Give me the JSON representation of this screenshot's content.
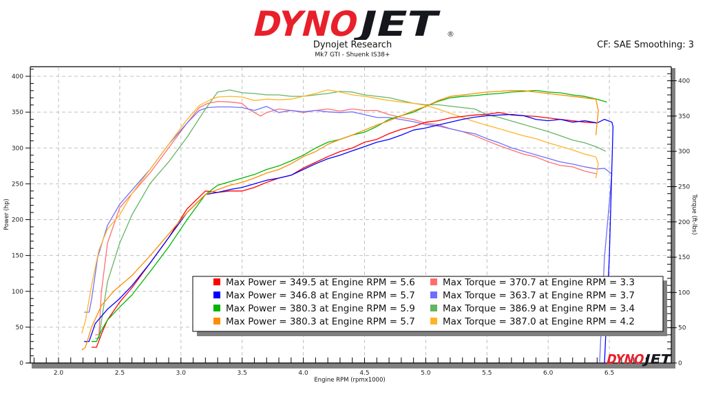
{
  "header": {
    "logo_text_red": "DYNO",
    "logo_text_black": "JET",
    "logo_registered": "®",
    "organization": "Dynojet Research",
    "subtitle": "Mk7 GTI - Shuenk IS38+",
    "correction": "CF: SAE Smoothing: 3"
  },
  "watermark": {
    "red": "DYNO",
    "black": "JET"
  },
  "colors": {
    "run1_power": "#ff0000",
    "run2_power": "#0000ff",
    "run3_power": "#00b400",
    "run4_power": "#ff8c00",
    "run1_torque": "#ff6e6e",
    "run2_torque": "#6e6eff",
    "run3_torque": "#64b464",
    "run4_torque": "#ffb428",
    "grid": "#c0c0c0",
    "brand_red": "#e8202a"
  },
  "chart_data": {
    "type": "line",
    "title": "Dynojet Research",
    "subtitle": "Mk7 GTI - Shuenk IS38+",
    "xlabel": "Engine RPM (rpmx1000)",
    "ylabel": "Power (hp)",
    "y2label": "Torque (ft-lbs)",
    "xlim": [
      1.78,
      6.97
    ],
    "ylim": [
      0,
      400
    ],
    "y2lim": [
      0,
      400
    ],
    "x_ticks": [
      "2.0",
      "2.5",
      "3.0",
      "3.5",
      "4.0",
      "4.5",
      "5.0",
      "5.5",
      "6.0",
      "6.5"
    ],
    "y_ticks": [
      "0",
      "50",
      "100",
      "150",
      "200",
      "250",
      "300",
      "350",
      "400"
    ],
    "y2_ticks": [
      "0",
      "50",
      "100",
      "150",
      "200",
      "250",
      "300",
      "350",
      "400"
    ],
    "grid": true,
    "legend_position": "lower center-right",
    "series": [
      {
        "name": "Max Power = 349.5 at Engine RPM = 5.6",
        "axis": "left",
        "color": "#ff0000",
        "x": [
          2.27,
          2.31,
          2.35,
          2.4,
          2.5,
          2.6,
          2.75,
          2.9,
          3.05,
          3.2,
          3.3,
          3.4,
          3.5,
          3.6,
          3.7,
          3.8,
          3.9,
          4.0,
          4.1,
          4.2,
          4.3,
          4.4,
          4.5,
          4.6,
          4.7,
          4.8,
          4.9,
          5.0,
          5.1,
          5.2,
          5.3,
          5.4,
          5.5,
          5.6,
          5.7,
          5.8,
          5.9,
          6.0,
          6.1,
          6.2,
          6.3,
          6.4
        ],
        "y": [
          22,
          22,
          40,
          60,
          85,
          105,
          140,
          175,
          215,
          240,
          238,
          240,
          240,
          245,
          252,
          258,
          262,
          272,
          280,
          288,
          295,
          300,
          308,
          312,
          320,
          326,
          330,
          336,
          338,
          342,
          344,
          346,
          347,
          349.5,
          346,
          345,
          344,
          342,
          340,
          338,
          336,
          335
        ]
      },
      {
        "name": "Max Power = 346.8 at Engine RPM = 5.7",
        "axis": "left",
        "color": "#0000ff",
        "x": [
          2.21,
          2.25,
          2.3,
          2.4,
          2.5,
          2.6,
          2.75,
          2.9,
          3.05,
          3.2,
          3.3,
          3.4,
          3.5,
          3.6,
          3.7,
          3.8,
          3.9,
          4.0,
          4.1,
          4.2,
          4.3,
          4.4,
          4.5,
          4.6,
          4.7,
          4.8,
          4.9,
          5.0,
          5.1,
          5.2,
          5.3,
          5.4,
          5.5,
          5.6,
          5.7,
          5.8,
          5.9,
          6.0,
          6.1,
          6.2,
          6.3,
          6.4,
          6.46,
          6.52,
          6.53,
          6.5,
          6.46
        ],
        "y": [
          30,
          30,
          55,
          75,
          90,
          108,
          140,
          175,
          210,
          235,
          238,
          242,
          245,
          250,
          255,
          258,
          262,
          270,
          278,
          285,
          290,
          296,
          302,
          308,
          312,
          318,
          325,
          328,
          332,
          336,
          340,
          343,
          345,
          346,
          346.8,
          345,
          340,
          338,
          340,
          336,
          338,
          335,
          340,
          336,
          330,
          150,
          0
        ]
      },
      {
        "name": "Max Power = 380.3 at Engine RPM = 5.9",
        "axis": "left",
        "color": "#00b400",
        "x": [
          2.27,
          2.31,
          2.35,
          2.4,
          2.5,
          2.6,
          2.75,
          2.9,
          3.05,
          3.2,
          3.3,
          3.4,
          3.5,
          3.6,
          3.7,
          3.8,
          3.9,
          4.0,
          4.1,
          4.2,
          4.3,
          4.4,
          4.5,
          4.6,
          4.7,
          4.8,
          4.9,
          5.0,
          5.1,
          5.2,
          5.3,
          5.4,
          5.5,
          5.6,
          5.7,
          5.8,
          5.9,
          6.0,
          6.1,
          6.2,
          6.3,
          6.4,
          6.48
        ],
        "y": [
          30,
          30,
          45,
          60,
          78,
          95,
          128,
          162,
          200,
          235,
          248,
          253,
          258,
          263,
          270,
          275,
          282,
          290,
          300,
          308,
          312,
          318,
          322,
          330,
          340,
          345,
          350,
          358,
          365,
          370,
          372,
          373,
          375,
          376,
          378,
          379,
          380.3,
          378,
          377,
          374,
          372,
          368,
          364
        ]
      },
      {
        "name": "Max Power = 380.3 at Engine RPM = 5.7",
        "axis": "left",
        "color": "#ff8c00",
        "x": [
          2.19,
          2.22,
          2.27,
          2.35,
          2.45,
          2.6,
          2.75,
          2.9,
          3.05,
          3.2,
          3.3,
          3.4,
          3.5,
          3.6,
          3.7,
          3.8,
          3.9,
          4.0,
          4.1,
          4.2,
          4.3,
          4.4,
          4.5,
          4.6,
          4.7,
          4.8,
          4.9,
          5.0,
          5.1,
          5.2,
          5.3,
          5.4,
          5.5,
          5.6,
          5.7,
          5.8,
          5.9,
          6.0,
          6.1,
          6.2,
          6.3,
          6.39,
          6.41,
          6.39
        ],
        "y": [
          18,
          22,
          50,
          80,
          100,
          122,
          150,
          180,
          210,
          235,
          242,
          248,
          252,
          258,
          265,
          270,
          278,
          288,
          295,
          305,
          312,
          318,
          325,
          332,
          338,
          345,
          352,
          358,
          366,
          372,
          374,
          376,
          378,
          379,
          380.3,
          380,
          378,
          376,
          374,
          372,
          370,
          368,
          352,
          318
        ]
      },
      {
        "name": "Max Torque = 370.7 at Engine RPM = 3.3",
        "axis": "right",
        "color": "#ff6e6e",
        "x": [
          2.3,
          2.33,
          2.35,
          2.4,
          2.5,
          2.6,
          2.75,
          2.9,
          3.05,
          3.15,
          3.22,
          3.3,
          3.4,
          3.5,
          3.55,
          3.6,
          3.65,
          3.7,
          3.8,
          3.9,
          4.0,
          4.1,
          4.2,
          4.3,
          4.4,
          4.5,
          4.6,
          4.7,
          4.8,
          4.9,
          5.0,
          5.1,
          5.2,
          5.3,
          5.4,
          5.5,
          5.6,
          5.7,
          5.8,
          5.9,
          6.0,
          6.1,
          6.2,
          6.3,
          6.4
        ],
        "y": [
          40,
          40,
          100,
          170,
          220,
          240,
          270,
          305,
          340,
          362,
          368,
          370.7,
          370,
          368,
          360,
          355,
          350,
          355,
          360,
          358,
          355,
          358,
          360,
          357,
          360,
          358,
          358,
          352,
          348,
          345,
          340,
          338,
          332,
          328,
          322,
          315,
          308,
          302,
          296,
          292,
          285,
          280,
          278,
          272,
          268
        ]
      },
      {
        "name": "Max Torque = 363.7 at Engine RPM = 3.7",
        "axis": "right",
        "color": "#6e6eff",
        "x": [
          2.21,
          2.25,
          2.27,
          2.32,
          2.4,
          2.5,
          2.6,
          2.75,
          2.9,
          3.05,
          3.15,
          3.22,
          3.3,
          3.4,
          3.5,
          3.6,
          3.7,
          3.8,
          3.9,
          4.0,
          4.1,
          4.2,
          4.3,
          4.4,
          4.5,
          4.6,
          4.7,
          4.8,
          4.9,
          5.0,
          5.1,
          5.2,
          5.3,
          5.4,
          5.5,
          5.6,
          5.7,
          5.8,
          5.9,
          6.0,
          6.1,
          6.2,
          6.3,
          6.4,
          6.46,
          6.52,
          6.46,
          6.42
        ],
        "y": [
          72,
          72,
          90,
          150,
          195,
          225,
          245,
          275,
          310,
          340,
          358,
          362,
          363,
          363,
          362,
          358,
          363.7,
          355,
          358,
          356,
          358,
          356,
          355,
          356,
          352,
          348,
          348,
          345,
          342,
          338,
          336,
          332,
          328,
          325,
          318,
          312,
          305,
          300,
          295,
          290,
          285,
          282,
          278,
          275,
          276,
          268,
          150,
          0
        ]
      },
      {
        "name": "Max Torque = 386.9 at Engine RPM = 3.4",
        "axis": "right",
        "color": "#64b464",
        "x": [
          2.3,
          2.33,
          2.36,
          2.4,
          2.5,
          2.6,
          2.75,
          2.9,
          3.05,
          3.2,
          3.3,
          3.4,
          3.5,
          3.6,
          3.7,
          3.8,
          3.9,
          4.0,
          4.1,
          4.2,
          4.3,
          4.4,
          4.5,
          4.6,
          4.7,
          4.8,
          4.9,
          5.0,
          5.1,
          5.2,
          5.3,
          5.4,
          5.5,
          5.6,
          5.7,
          5.8,
          5.9,
          6.0,
          6.1,
          6.2,
          6.3,
          6.4,
          6.47
        ],
        "y": [
          35,
          35,
          70,
          115,
          170,
          210,
          255,
          285,
          320,
          360,
          384,
          386.9,
          383,
          382,
          380,
          380,
          378,
          378,
          380,
          382,
          385,
          384,
          380,
          378,
          376,
          372,
          368,
          366,
          366,
          364,
          362,
          360,
          352,
          348,
          343,
          338,
          333,
          328,
          322,
          316,
          312,
          306,
          300
        ]
      },
      {
        "name": "Max Torque = 387.0 at Engine RPM = 4.2",
        "axis": "right",
        "color": "#ffb428",
        "x": [
          2.19,
          2.22,
          2.27,
          2.33,
          2.4,
          2.5,
          2.6,
          2.75,
          2.9,
          3.05,
          3.15,
          3.25,
          3.3,
          3.4,
          3.5,
          3.6,
          3.7,
          3.8,
          3.9,
          4.0,
          4.1,
          4.2,
          4.3,
          4.4,
          4.5,
          4.6,
          4.7,
          4.8,
          4.9,
          5.0,
          5.1,
          5.2,
          5.3,
          5.4,
          5.5,
          5.6,
          5.7,
          5.8,
          5.9,
          6.0,
          6.1,
          6.2,
          6.3,
          6.39,
          6.41,
          6.39
        ],
        "y": [
          42,
          60,
          110,
          160,
          190,
          210,
          240,
          275,
          310,
          345,
          365,
          374,
          377,
          378,
          377,
          372,
          374,
          373,
          374,
          378,
          382,
          387,
          384,
          380,
          378,
          375,
          372,
          370,
          368,
          365,
          360,
          354,
          348,
          342,
          337,
          332,
          327,
          322,
          318,
          312,
          307,
          302,
          296,
          292,
          282,
          262
        ]
      }
    ]
  },
  "legend": {
    "items": [
      {
        "label": "Max Power = 349.5 at Engine RPM = 5.6",
        "color": "#ff0000"
      },
      {
        "label": "Max Power = 346.8 at Engine RPM = 5.7",
        "color": "#0000ff"
      },
      {
        "label": "Max Power = 380.3 at Engine RPM = 5.9",
        "color": "#00b400"
      },
      {
        "label": "Max Power = 380.3 at Engine RPM = 5.7",
        "color": "#ff8c00"
      },
      {
        "label": "Max Torque = 370.7 at Engine RPM = 3.3",
        "color": "#ff6e6e"
      },
      {
        "label": "Max Torque = 363.7 at Engine RPM = 3.7",
        "color": "#6e6eff"
      },
      {
        "label": "Max Torque = 386.9 at Engine RPM = 3.4",
        "color": "#64b464"
      },
      {
        "label": "Max Torque = 387.0 at Engine RPM = 4.2",
        "color": "#ffb428"
      }
    ]
  }
}
